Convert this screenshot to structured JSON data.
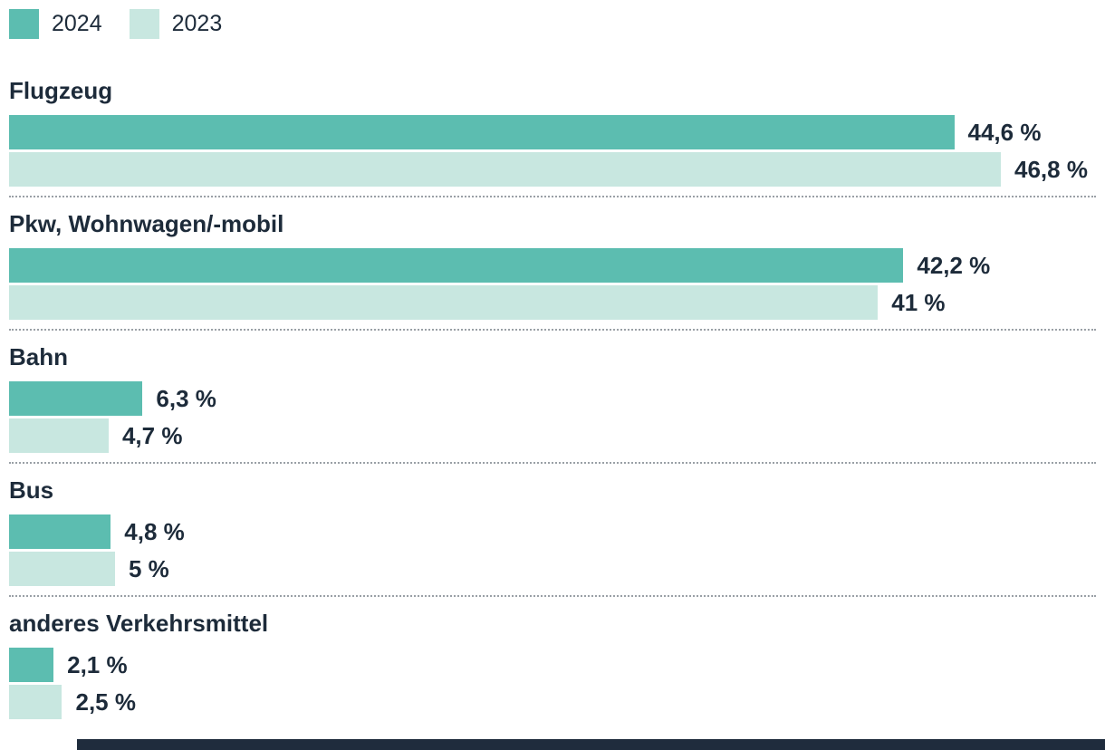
{
  "chart_data": {
    "type": "bar",
    "orientation": "horizontal",
    "title": "",
    "unit": "%",
    "max_value": 46.8,
    "categories": [
      "Flugzeug",
      "Pkw, Wohnwagen/-mobil",
      "Bahn",
      "Bus",
      "anderes Verkehrsmittel"
    ],
    "series": [
      {
        "name": "2024",
        "color": "#5cbdb0",
        "values": [
          44.6,
          42.2,
          6.3,
          4.8,
          2.1
        ],
        "labels": [
          "44,6 %",
          "42,2 %",
          "6,3 %",
          "4,8 %",
          "2,1 %"
        ]
      },
      {
        "name": "2023",
        "color": "#c8e7e0",
        "values": [
          46.8,
          41,
          4.7,
          5,
          2.5
        ],
        "labels": [
          "46,8 %",
          "41 %",
          "4,7 %",
          "5 %",
          "2,5 %"
        ]
      }
    ],
    "legend_position": "top",
    "grid": false
  },
  "legend": {
    "items": [
      {
        "label": "2024",
        "color": "#5cbdb0"
      },
      {
        "label": "2023",
        "color": "#c8e7e0"
      }
    ]
  },
  "colors": {
    "series_2024": "#5cbdb0",
    "series_2023": "#c8e7e0",
    "text": "#1d2b3a",
    "separator": "#9aa0a6",
    "footer_band": "#1f2c3d"
  }
}
